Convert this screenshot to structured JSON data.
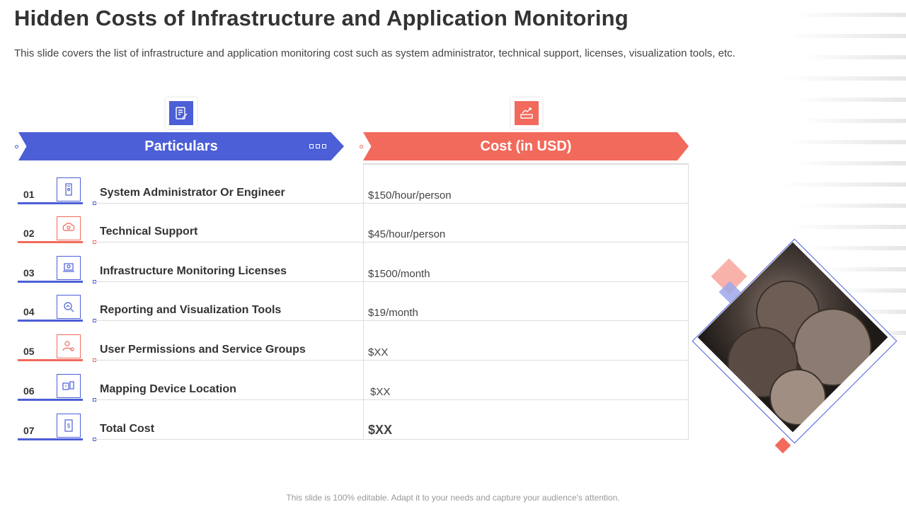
{
  "title": "Hidden Costs of Infrastructure and Application Monitoring",
  "subtitle": "This slide covers the list of infrastructure  and application monitoring cost such as system administrator, technical support, licenses, visualization tools, etc.",
  "headers": {
    "particulars": "Particulars",
    "cost": "Cost (in USD)",
    "particulars_icon": "document-checklist-icon",
    "cost_icon": "money-growth-icon"
  },
  "rows": [
    {
      "num": "01",
      "label": "System Administrator Or Engineer",
      "cost": "$150/hour/person",
      "icon": "server-icon",
      "accent": "blue"
    },
    {
      "num": "02",
      "label": "Technical Support",
      "cost": "$45/hour/person",
      "icon": "brain-gear-icon",
      "accent": "red"
    },
    {
      "num": "03",
      "label": "Infrastructure Monitoring Licenses",
      "cost": "$1500/month",
      "icon": "laptop-license-icon",
      "accent": "blue"
    },
    {
      "num": "04",
      "label": "Reporting and Visualization Tools",
      "cost": "$19/month",
      "icon": "magnifier-chart-icon",
      "accent": "blue"
    },
    {
      "num": "05",
      "label": "User Permissions and Service Groups",
      "cost": "$XX",
      "icon": "user-settings-icon",
      "accent": "red"
    },
    {
      "num": "06",
      "label": "Mapping Device Location",
      "cost": "$XX",
      "icon": "devices-location-icon",
      "accent": "blue"
    },
    {
      "num": "07",
      "label": "Total Cost",
      "cost": "$XX",
      "icon": "dollar-document-icon",
      "accent": "blue"
    }
  ],
  "colors": {
    "blue": "#4c5fd7",
    "red": "#f26a5b"
  },
  "footer": "This slide is 100% editable. Adapt it to your needs and capture your audience's attention."
}
